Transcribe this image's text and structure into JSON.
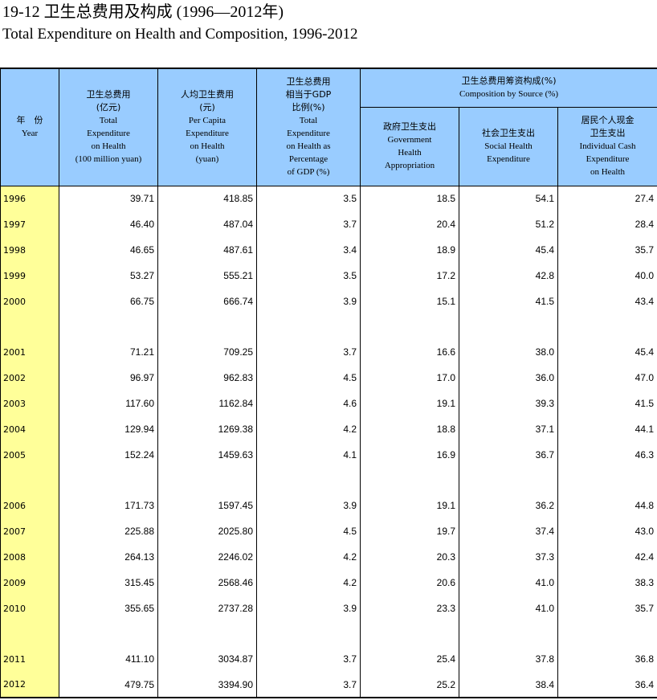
{
  "title_cn": "19-12  卫生总费用及构成 (1996—2012年)",
  "title_en": "Total Expenditure on Health and Composition, 1996-2012",
  "header": {
    "year_cn": "年　份",
    "year_en": "Year",
    "total_cn": "卫生总费用",
    "total_unit_cn": "(亿元)",
    "total_en": [
      "Total",
      "Expenditure",
      "on Health",
      "(100 million yuan)"
    ],
    "percap_cn": "人均卫生费用",
    "percap_unit_cn": "(元)",
    "percap_en": [
      "Per Capita",
      "Expenditure",
      "on Health",
      "(yuan)"
    ],
    "gdp_cn": [
      "卫生总费用",
      "相当于GDP",
      "比例(%)"
    ],
    "gdp_en": [
      "Total",
      "Expenditure",
      "on Health as",
      "Percentage",
      "of GDP (%)"
    ],
    "comp_cn": "卫生总费用筹资构成(%)",
    "comp_en": "Composition by Source (%)",
    "gov_cn": "政府卫生支出",
    "gov_en": [
      "Government",
      "Health",
      "Appropriation"
    ],
    "social_cn": "社会卫生支出",
    "social_en": [
      "Social Health",
      "Expenditure"
    ],
    "indiv_cn": [
      "居民个人现金",
      "卫生支出"
    ],
    "indiv_en": [
      "Individual Cash",
      "Expenditure",
      "on Health"
    ]
  },
  "rows": [
    {
      "year": "1996",
      "total": "39.71",
      "percap": "418.85",
      "gdp": "3.5",
      "gov": "18.5",
      "social": "54.1",
      "indiv": "27.4"
    },
    {
      "year": "1997",
      "total": "46.40",
      "percap": "487.04",
      "gdp": "3.7",
      "gov": "20.4",
      "social": "51.2",
      "indiv": "28.4"
    },
    {
      "year": "1998",
      "total": "46.65",
      "percap": "487.61",
      "gdp": "3.4",
      "gov": "18.9",
      "social": "45.4",
      "indiv": "35.7"
    },
    {
      "year": "1999",
      "total": "53.27",
      "percap": "555.21",
      "gdp": "3.5",
      "gov": "17.2",
      "social": "42.8",
      "indiv": "40.0"
    },
    {
      "year": "2000",
      "total": "66.75",
      "percap": "666.74",
      "gdp": "3.9",
      "gov": "15.1",
      "social": "41.5",
      "indiv": "43.4"
    },
    {
      "blank": true
    },
    {
      "year": "2001",
      "total": "71.21",
      "percap": "709.25",
      "gdp": "3.7",
      "gov": "16.6",
      "social": "38.0",
      "indiv": "45.4"
    },
    {
      "year": "2002",
      "total": "96.97",
      "percap": "962.83",
      "gdp": "4.5",
      "gov": "17.0",
      "social": "36.0",
      "indiv": "47.0"
    },
    {
      "year": "2003",
      "total": "117.60",
      "percap": "1162.84",
      "gdp": "4.6",
      "gov": "19.1",
      "social": "39.3",
      "indiv": "41.5"
    },
    {
      "year": "2004",
      "total": "129.94",
      "percap": "1269.38",
      "gdp": "4.2",
      "gov": "18.8",
      "social": "37.1",
      "indiv": "44.1"
    },
    {
      "year": "2005",
      "total": "152.24",
      "percap": "1459.63",
      "gdp": "4.1",
      "gov": "16.9",
      "social": "36.7",
      "indiv": "46.3"
    },
    {
      "blank": true
    },
    {
      "year": "2006",
      "total": "171.73",
      "percap": "1597.45",
      "gdp": "3.9",
      "gov": "19.1",
      "social": "36.2",
      "indiv": "44.8"
    },
    {
      "year": "2007",
      "total": "225.88",
      "percap": "2025.80",
      "gdp": "4.5",
      "gov": "19.7",
      "social": "37.4",
      "indiv": "43.0"
    },
    {
      "year": "2008",
      "total": "264.13",
      "percap": "2246.02",
      "gdp": "4.2",
      "gov": "20.3",
      "social": "37.3",
      "indiv": "42.4"
    },
    {
      "year": "2009",
      "total": "315.45",
      "percap": "2568.46",
      "gdp": "4.2",
      "gov": "20.6",
      "social": "41.0",
      "indiv": "38.3"
    },
    {
      "year": "2010",
      "total": "355.65",
      "percap": "2737.28",
      "gdp": "3.9",
      "gov": "23.3",
      "social": "41.0",
      "indiv": "35.7"
    },
    {
      "blank": true
    },
    {
      "year": "2011",
      "total": "411.10",
      "percap": "3034.87",
      "gdp": "3.7",
      "gov": "25.4",
      "social": "37.8",
      "indiv": "36.8"
    },
    {
      "year": "2012",
      "total": "479.75",
      "percap": "3394.90",
      "gdp": "3.7",
      "gov": "25.2",
      "social": "38.4",
      "indiv": "36.4"
    }
  ]
}
